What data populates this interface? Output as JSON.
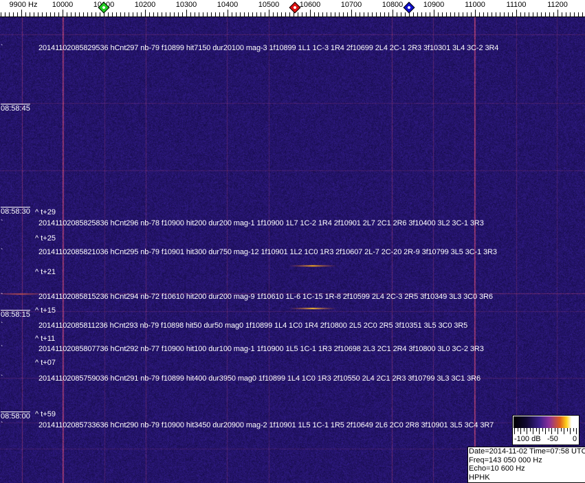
{
  "frequency_axis": {
    "labels": [
      "9900 Hz",
      "10000",
      "10100",
      "10200",
      "10300",
      "10400",
      "10500",
      "10600",
      "10700",
      "10800",
      "10900",
      "11000",
      "11100",
      "11200"
    ],
    "values": [
      9900,
      10000,
      10100,
      10200,
      10300,
      10400,
      10500,
      10600,
      10700,
      10800,
      10900,
      11000,
      11100,
      11200
    ]
  },
  "markers": [
    {
      "name": "green-marker",
      "freq_hz": 10100,
      "color": "#22cc22"
    },
    {
      "name": "red-marker",
      "freq_hz": 10563,
      "color": "#dd1111"
    },
    {
      "name": "blue-marker",
      "freq_hz": 10840,
      "color": "#1111cc"
    }
  ],
  "time_labels": [
    "08:58:45",
    "08:58:30",
    "08:58:15",
    "08:58:00"
  ],
  "offset_labels": [
    "^ t+29",
    "^ t+25",
    "^ t+21",
    "^ t+15",
    "^ t+11",
    "^ t+07",
    "^ t+59"
  ],
  "detections": [
    "20141102085829536 hCnt297 nb-79 f10899 hit7150 dur20100 mag-3 1f10899 1L1 1C-3 1R4 2f10699 2L4 2C-1 2R3 3f10301 3L4 3C-2 3R4",
    "20141102085825836 hCnt296 nb-78 f10900 hit200 dur200 mag-1 1f10900 1L7 1C-2 1R4 2f10901 2L7 2C1 2R6 3f10400 3L2 3C-1 3R3",
    "20141102085821036 hCnt295 nb-79 f10901 hit300 dur750 mag-12 1f10901 1L2 1C0 1R3 2f10607 2L-7 2C-20 2R-9 3f10799 3L5 3C-1 3R3",
    "20141102085815236 hCnt294 nb-72 f10610 hit200 dur200 mag-9 1f10610 1L-6 1C-15 1R-8 2f10599 2L4 2C-3 2R5 3f10349 3L3 3C0 3R6",
    "20141102085811236 hCnt293 nb-79 f10898 hit50 dur50 mag0 1f10899 1L4 1C0 1R4 2f10800 2L5 2C0 2R5 3f10351 3L5 3C0 3R5",
    "20141102085807736 hCnt292 nb-77 f10900 hit100 dur100 mag-1 1f10900 1L5 1C-1 1R3 2f10698 2L3 2C1 2R4 3f10800 3L0 3C-2 3R3",
    "20141102085759036 hCnt291 nb-79 f10899 hit400 dur3950 mag0 1f10899 1L4 1C0 1R3 2f10550 2L4 2C1 2R3 3f10799 3L3 3C1 3R6",
    "20141102085733636 hCnt290 nb-79 f10900 hit3450 dur20900 mag-2 1f10901 1L5 1C-1 1R5 2f10649 2L6 2C0 2R8 3f10901 3L5 3C4 3R7"
  ],
  "colorbar": {
    "labels": [
      "-100 dB",
      "-50",
      "0"
    ]
  },
  "info": {
    "date_time": "Date=2014-11-02 Time=07:58 UTC",
    "freq": "Freq=143 050 000 Hz",
    "echo": "Echo=10 600 Hz",
    "station": "HPHK"
  },
  "colors": {
    "background": "#2b1c6e",
    "carrier_line": "#c04a7a",
    "echo": "#ffb020"
  }
}
